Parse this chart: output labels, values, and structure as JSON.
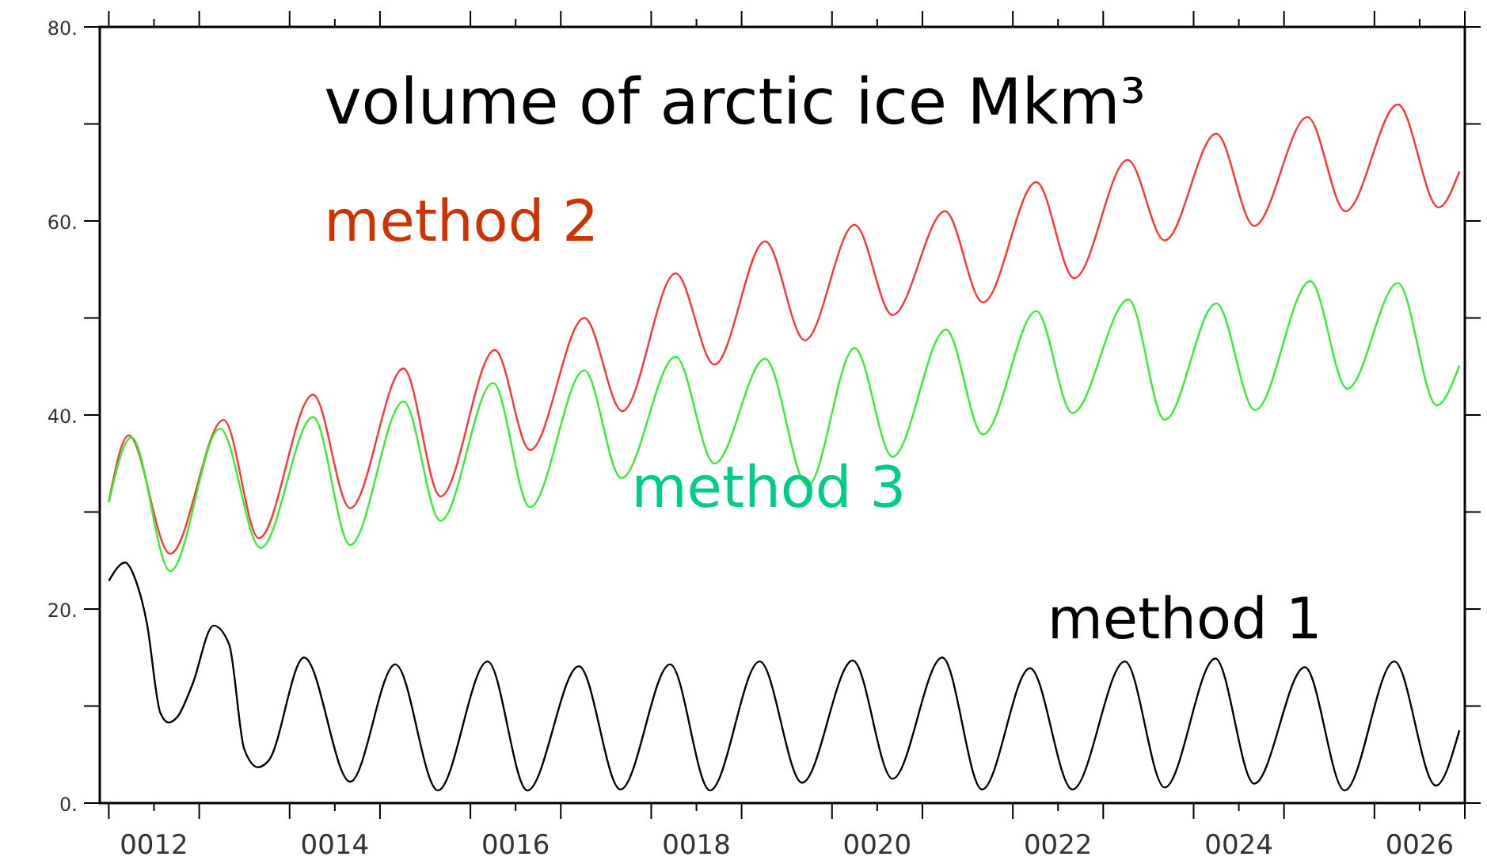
{
  "chart_data": {
    "type": "line",
    "title": "volume of arctic ice Mkm³",
    "xlim": [
      11.9,
      27.0
    ],
    "xticks": [
      {
        "value": 12,
        "label": null
      },
      {
        "value": 12.5,
        "label": "0012"
      },
      {
        "value": 13,
        "label": null
      },
      {
        "value": 14,
        "label": null
      },
      {
        "value": 14.5,
        "label": "0014"
      },
      {
        "value": 15,
        "label": null
      },
      {
        "value": 16,
        "label": null
      },
      {
        "value": 16.5,
        "label": "0016"
      },
      {
        "value": 17,
        "label": null
      },
      {
        "value": 18,
        "label": null
      },
      {
        "value": 18.5,
        "label": "0018"
      },
      {
        "value": 19,
        "label": null
      },
      {
        "value": 20,
        "label": null
      },
      {
        "value": 20.5,
        "label": "0020"
      },
      {
        "value": 21,
        "label": null
      },
      {
        "value": 22,
        "label": null
      },
      {
        "value": 22.5,
        "label": "0022"
      },
      {
        "value": 23,
        "label": null
      },
      {
        "value": 24,
        "label": null
      },
      {
        "value": 24.5,
        "label": "0024"
      },
      {
        "value": 25,
        "label": null
      },
      {
        "value": 26,
        "label": null
      },
      {
        "value": 26.5,
        "label": "0026"
      },
      {
        "value": 27,
        "label": null
      }
    ],
    "ylim": [
      0,
      80
    ],
    "yticks": [
      {
        "value": 0,
        "label": "0."
      },
      {
        "value": 10,
        "label": null
      },
      {
        "value": 20,
        "label": "20."
      },
      {
        "value": 30,
        "label": null
      },
      {
        "value": 40,
        "label": "40."
      },
      {
        "value": 50,
        "label": null
      },
      {
        "value": 60,
        "label": "60."
      },
      {
        "value": 70,
        "label": null
      },
      {
        "value": 80,
        "label": "80."
      }
    ],
    "grid": false,
    "marker": "none",
    "line_style": "solid",
    "series": [
      {
        "name": "method 1",
        "color": "#000000",
        "x": [
          12.0,
          12.18,
          12.3,
          12.42,
          12.57,
          12.66,
          12.76,
          12.92,
          13.16,
          13.33,
          13.5,
          13.65,
          13.77,
          14.16,
          14.67,
          15.17,
          15.64,
          16.19,
          16.63,
          17.2,
          17.66,
          18.21,
          18.65,
          19.2,
          19.67,
          20.23,
          20.67,
          21.22,
          21.66,
          22.19,
          22.66,
          23.24,
          23.68,
          24.24,
          24.67,
          25.23,
          25.67,
          26.22,
          26.68,
          26.94
        ],
        "values": [
          22.9,
          24.8,
          22.9,
          18.6,
          9.3,
          8.3,
          8.9,
          12.1,
          18.3,
          16.4,
          5.5,
          3.7,
          4.4,
          15.0,
          2.2,
          14.3,
          1.3,
          14.6,
          1.3,
          14.1,
          1.4,
          14.3,
          1.3,
          14.6,
          2.1,
          14.7,
          2.5,
          15.0,
          1.4,
          13.9,
          1.4,
          14.6,
          1.6,
          14.9,
          2.0,
          14.0,
          1.3,
          14.6,
          1.8,
          7.5
        ]
      },
      {
        "name": "method 2",
        "color": "#ff3333",
        "x": [
          12.0,
          12.22,
          12.68,
          13.27,
          13.66,
          14.26,
          14.67,
          15.26,
          15.67,
          16.27,
          16.66,
          17.26,
          17.68,
          18.27,
          18.7,
          19.26,
          19.7,
          20.25,
          20.67,
          21.25,
          21.67,
          22.26,
          22.68,
          23.27,
          23.68,
          24.25,
          24.67,
          25.26,
          25.68,
          26.26,
          26.71,
          26.94
        ],
        "values": [
          31.1,
          37.9,
          25.7,
          39.5,
          27.3,
          42.1,
          30.4,
          44.8,
          31.6,
          46.7,
          36.4,
          50.0,
          40.4,
          54.6,
          45.2,
          57.9,
          47.7,
          59.6,
          50.3,
          61.0,
          51.6,
          64.0,
          54.1,
          66.3,
          58.0,
          69.0,
          59.5,
          70.7,
          61.0,
          72.0,
          61.4,
          65.1
        ]
      },
      {
        "name": "method 3",
        "color": "#33ee33",
        "x": [
          12.0,
          12.25,
          12.68,
          13.23,
          13.68,
          14.26,
          14.67,
          15.26,
          15.67,
          16.25,
          16.66,
          17.26,
          17.67,
          18.27,
          18.7,
          19.26,
          19.73,
          20.25,
          20.67,
          21.26,
          21.67,
          22.26,
          22.66,
          23.28,
          23.68,
          24.25,
          24.68,
          25.29,
          25.7,
          26.26,
          26.69,
          26.94
        ],
        "values": [
          31.0,
          37.7,
          23.9,
          38.6,
          26.3,
          39.8,
          26.6,
          41.4,
          29.1,
          43.3,
          30.5,
          44.6,
          33.5,
          46.0,
          35.0,
          45.8,
          32.7,
          46.9,
          35.7,
          48.8,
          38.0,
          50.7,
          40.2,
          51.9,
          39.5,
          51.5,
          40.5,
          53.8,
          42.7,
          53.6,
          41.0,
          45.1
        ]
      }
    ]
  }
}
